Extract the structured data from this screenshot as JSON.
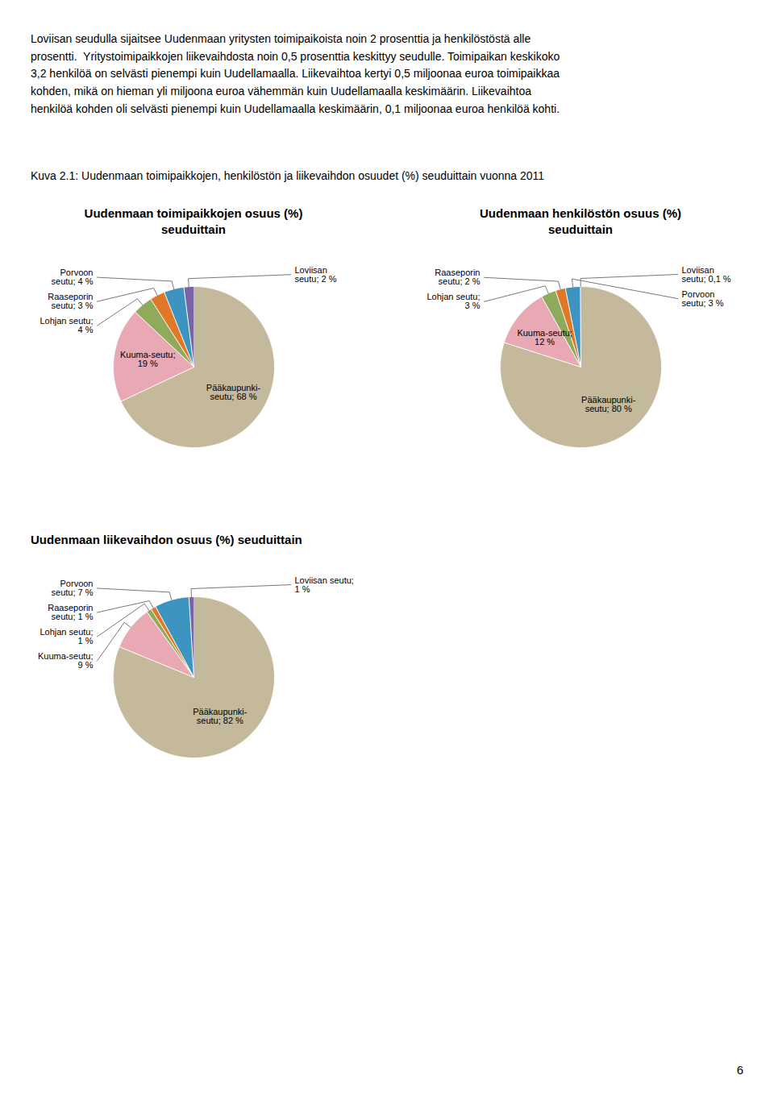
{
  "header": "Loviisan seudulla sijaitsee Uudenmaan yritysten toimipaikoista noin 2 prosenttia ja henkilöstöstä alle\nprosentti.  Yritystoimipaikkojen liikevaihdosta noin 0,5 prosenttia keskittyy seudulle. Toimipaikan keskikoko\n3,2 henkilöä on selvästi pienempi kuin Uudellamaalla. Liikevaihtoa kertyi 0,5 miljoonaa euroa toimipaikkaa\nkohden, mikä on hieman yli miljoona euroa vähemmän kuin Uudellamaalla keskimäärin. Liikevaihtoa\nhenkilöä kohden oli selvästi pienempi kuin Uudellamaalla keskimäärin, 0,1 miljoonaa euroa henkilöä kohti.",
  "caption": "Kuva 2.1: Uudenmaan toimipaikkojen, henkilöstön ja liikevaihdon osuudet (%) seuduittain vuonna 2011",
  "page_number": "6",
  "chart_data": [
    {
      "type": "pie",
      "title": "Uudenmaan toimipaikkojen osuus (%)\nseuduittain",
      "values": [
        68,
        19,
        4,
        3,
        4,
        2
      ],
      "value_labels": [
        "Pääkaupunki-\nseutu; 68 %",
        "Kuuma-seutu;\n19 %",
        "Lohjan seutu;\n4 %",
        "Raaseporin\nseutu; 3 %",
        "Porvoon\nseutu; 4 %",
        "Loviisan\nseutu; 2 %"
      ],
      "colors": [
        "#C4B99A",
        "#E8A8B4",
        "#8FAA5A",
        "#E07828",
        "#3E94C0",
        "#7865A8"
      ],
      "data_labels": true
    },
    {
      "type": "pie",
      "title": "Uudenmaan henkilöstön osuus (%)\nseuduittain",
      "values": [
        80,
        12,
        3,
        2,
        3,
        0.1
      ],
      "value_labels": [
        "Pääkaupunki-\nseutu; 80 %",
        "Kuuma-seutu;\n12 %",
        "Lohjan seutu;\n3 %",
        "Raaseporin\nseutu; 2 %",
        "Porvoon\nseutu; 3 %",
        "Loviisan\nseutu; 0,1 %"
      ],
      "colors": [
        "#C4B99A",
        "#E8A8B4",
        "#8FAA5A",
        "#E07828",
        "#3E94C0",
        "#7865A8"
      ],
      "data_labels": true
    },
    {
      "type": "pie",
      "title": "Uudenmaan liikevaihdon osuus (%) seuduittain",
      "values": [
        82,
        9,
        1,
        1,
        7,
        1
      ],
      "value_labels": [
        "Pääkaupunki-\nseutu; 82 %",
        "Kuuma-seutu;\n9 %",
        "Lohjan seutu;\n1 %",
        "Raaseporin\nseutu; 1 %",
        "Porvoon\nseutu; 7 %",
        "Loviisan seutu;\n1 %"
      ],
      "colors": [
        "#C4B99A",
        "#E8A8B4",
        "#8FAA5A",
        "#E07828",
        "#3E94C0",
        "#7865A8"
      ],
      "data_labels": true
    }
  ]
}
